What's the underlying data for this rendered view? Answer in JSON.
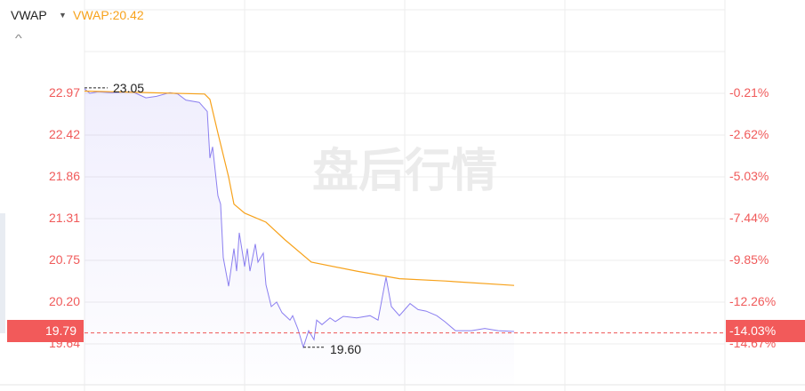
{
  "legend": {
    "name": "VWAP",
    "value_label": "VWAP:20.42",
    "value_color": "#f7a21b"
  },
  "watermark": "盘后行情",
  "chart_data": {
    "type": "line",
    "y_ticks_left": [
      "22.97",
      "22.42",
      "21.86",
      "21.31",
      "20.75",
      "20.20",
      "19.64"
    ],
    "y_ticks_right": [
      "-0.21%",
      "-2.62%",
      "-5.03%",
      "-7.44%",
      "-9.85%",
      "-12.26%",
      "-14.67%"
    ],
    "ylim": [
      19.64,
      22.97
    ],
    "grid": true,
    "current_price": "19.79",
    "current_change": "-14.03%",
    "max_label": "23.05",
    "min_label": "19.60",
    "colors": {
      "price": "#8b7ff0",
      "vwap": "#f7a21b",
      "axis_text": "#f05a5a",
      "tag_bg": "#f25a5a"
    },
    "series": [
      {
        "key": "price",
        "points": [
          [
            0,
            23.03
          ],
          [
            2,
            22.97
          ],
          [
            5,
            22.99
          ],
          [
            10,
            22.98
          ],
          [
            18,
            22.99
          ],
          [
            23,
            22.91
          ],
          [
            27,
            22.93
          ],
          [
            32,
            22.98
          ],
          [
            35,
            22.96
          ],
          [
            38,
            22.88
          ],
          [
            43,
            22.85
          ],
          [
            46,
            22.73
          ],
          [
            47,
            22.11
          ],
          [
            48,
            22.26
          ],
          [
            50,
            21.61
          ],
          [
            51,
            21.5
          ],
          [
            52,
            20.79
          ],
          [
            54,
            20.41
          ],
          [
            56,
            20.91
          ],
          [
            57,
            20.61
          ],
          [
            58,
            21.12
          ],
          [
            60,
            20.67
          ],
          [
            61,
            20.91
          ],
          [
            62,
            20.61
          ],
          [
            64,
            20.97
          ],
          [
            65,
            20.73
          ],
          [
            67,
            20.85
          ],
          [
            68,
            20.43
          ],
          [
            70,
            20.14
          ],
          [
            72,
            20.2
          ],
          [
            74,
            20.06
          ],
          [
            77,
            19.96
          ],
          [
            78,
            20.02
          ],
          [
            80,
            19.84
          ],
          [
            82,
            19.6
          ],
          [
            84,
            19.82
          ],
          [
            86,
            19.7
          ],
          [
            87,
            19.96
          ],
          [
            89,
            19.9
          ],
          [
            92,
            19.99
          ],
          [
            94,
            19.94
          ],
          [
            97,
            20.01
          ],
          [
            102,
            19.99
          ],
          [
            107,
            20.02
          ],
          [
            110,
            19.96
          ],
          [
            113,
            20.53
          ],
          [
            115,
            20.14
          ],
          [
            118,
            20.02
          ],
          [
            121,
            20.14
          ],
          [
            122,
            20.18
          ],
          [
            125,
            20.1
          ],
          [
            128,
            20.08
          ],
          [
            132,
            20.02
          ],
          [
            135,
            19.94
          ],
          [
            139,
            19.82
          ],
          [
            145,
            19.82
          ],
          [
            150,
            19.85
          ],
          [
            155,
            19.82
          ],
          [
            161,
            19.81
          ]
        ]
      },
      {
        "key": "vwap",
        "name": "VWAP",
        "points": [
          [
            0,
            23.0
          ],
          [
            45,
            22.96
          ],
          [
            47,
            22.89
          ],
          [
            50,
            22.44
          ],
          [
            54,
            21.86
          ],
          [
            56,
            21.5
          ],
          [
            60,
            21.38
          ],
          [
            68,
            21.26
          ],
          [
            75,
            21.03
          ],
          [
            85,
            20.73
          ],
          [
            102,
            20.61
          ],
          [
            118,
            20.51
          ],
          [
            135,
            20.48
          ],
          [
            161,
            20.42
          ]
        ]
      }
    ]
  }
}
